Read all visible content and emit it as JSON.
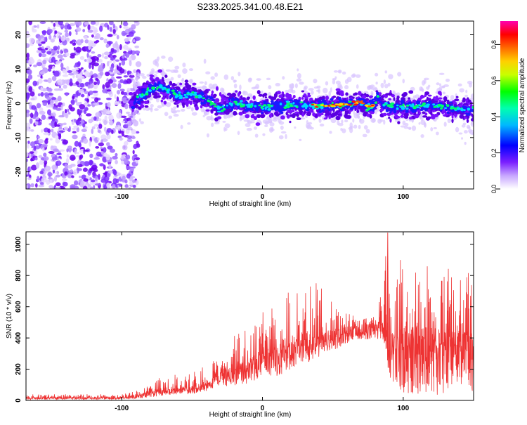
{
  "chart_data": [
    {
      "type": "heatmap",
      "title": "S233.2025.341.00.48.E21",
      "xlabel": "Height of straight line (km)",
      "ylabel": "Frequency (Hz)",
      "xlim": [
        -168,
        150
      ],
      "ylim": [
        -25,
        24
      ],
      "xticks": [
        -100,
        0,
        100
      ],
      "yticks": [
        -20,
        -10,
        0,
        10,
        20
      ],
      "colorbar": {
        "label": "Normalized spectral amplitude",
        "range": [
          0,
          0.93
        ],
        "ticks": [
          "0.0",
          "0.2",
          "0.4",
          "0.6",
          "0.8"
        ]
      },
      "ridge": {
        "description": "high-amplitude ridge near 0 Hz",
        "x": [
          -92,
          -85,
          -80,
          -75,
          -70,
          -65,
          -60,
          -50,
          -40,
          -30,
          -20,
          -10,
          0,
          10,
          20,
          30,
          40,
          50,
          60,
          65,
          70,
          75,
          80,
          82,
          85,
          90,
          100,
          110,
          120,
          130,
          140,
          150
        ],
        "y": [
          0.5,
          2.5,
          4,
          5,
          4.5,
          3.5,
          2,
          3,
          1,
          -1.5,
          0,
          -1,
          -1,
          -1,
          -0.5,
          -0.5,
          -1,
          -0.5,
          -0.5,
          0,
          0.5,
          -1,
          -0.5,
          2,
          0,
          -1,
          -1,
          -1,
          -0.5,
          -1,
          -1.5,
          -2
        ]
      }
    },
    {
      "type": "line",
      "xlabel": "Height of straight line (km)",
      "ylabel": "SNR (10 * v/v)",
      "xlim": [
        -168,
        150
      ],
      "ylim": [
        0,
        1080
      ],
      "xticks": [
        -100,
        0,
        100
      ],
      "yticks": [
        0,
        200,
        400,
        600,
        800,
        1000
      ],
      "color": "#ee3333",
      "envelope": {
        "description": "approximate lower/typical/upper SNR envelope of the noisy trace",
        "x": [
          -168,
          -100,
          -90,
          -80,
          -70,
          -60,
          -50,
          -40,
          -30,
          -20,
          -10,
          0,
          10,
          20,
          30,
          40,
          50,
          60,
          70,
          80,
          85,
          88,
          90,
          95,
          100,
          110,
          120,
          130,
          140,
          150
        ],
        "low": [
          5,
          5,
          10,
          20,
          30,
          40,
          40,
          60,
          90,
          90,
          110,
          150,
          150,
          200,
          230,
          280,
          320,
          360,
          390,
          390,
          400,
          300,
          150,
          80,
          50,
          30,
          30,
          40,
          50,
          60
        ],
        "mid": [
          20,
          20,
          30,
          60,
          70,
          80,
          90,
          110,
          180,
          220,
          260,
          320,
          330,
          370,
          400,
          420,
          450,
          470,
          480,
          500,
          500,
          480,
          430,
          420,
          430,
          430,
          420,
          440,
          430,
          450
        ],
        "high": [
          40,
          40,
          60,
          110,
          160,
          170,
          200,
          230,
          300,
          420,
          460,
          620,
          600,
          720,
          780,
          760,
          660,
          560,
          520,
          540,
          700,
          1070,
          800,
          900,
          900,
          880,
          910,
          900,
          880,
          780
        ]
      }
    }
  ],
  "colors": {
    "line": "#ee3333",
    "spectrum": [
      "#ffffff",
      "#7000ff",
      "#0000ff",
      "#00ffff",
      "#00ff00",
      "#ffff00",
      "#ff8000",
      "#ff0000",
      "#ff00ff"
    ]
  }
}
